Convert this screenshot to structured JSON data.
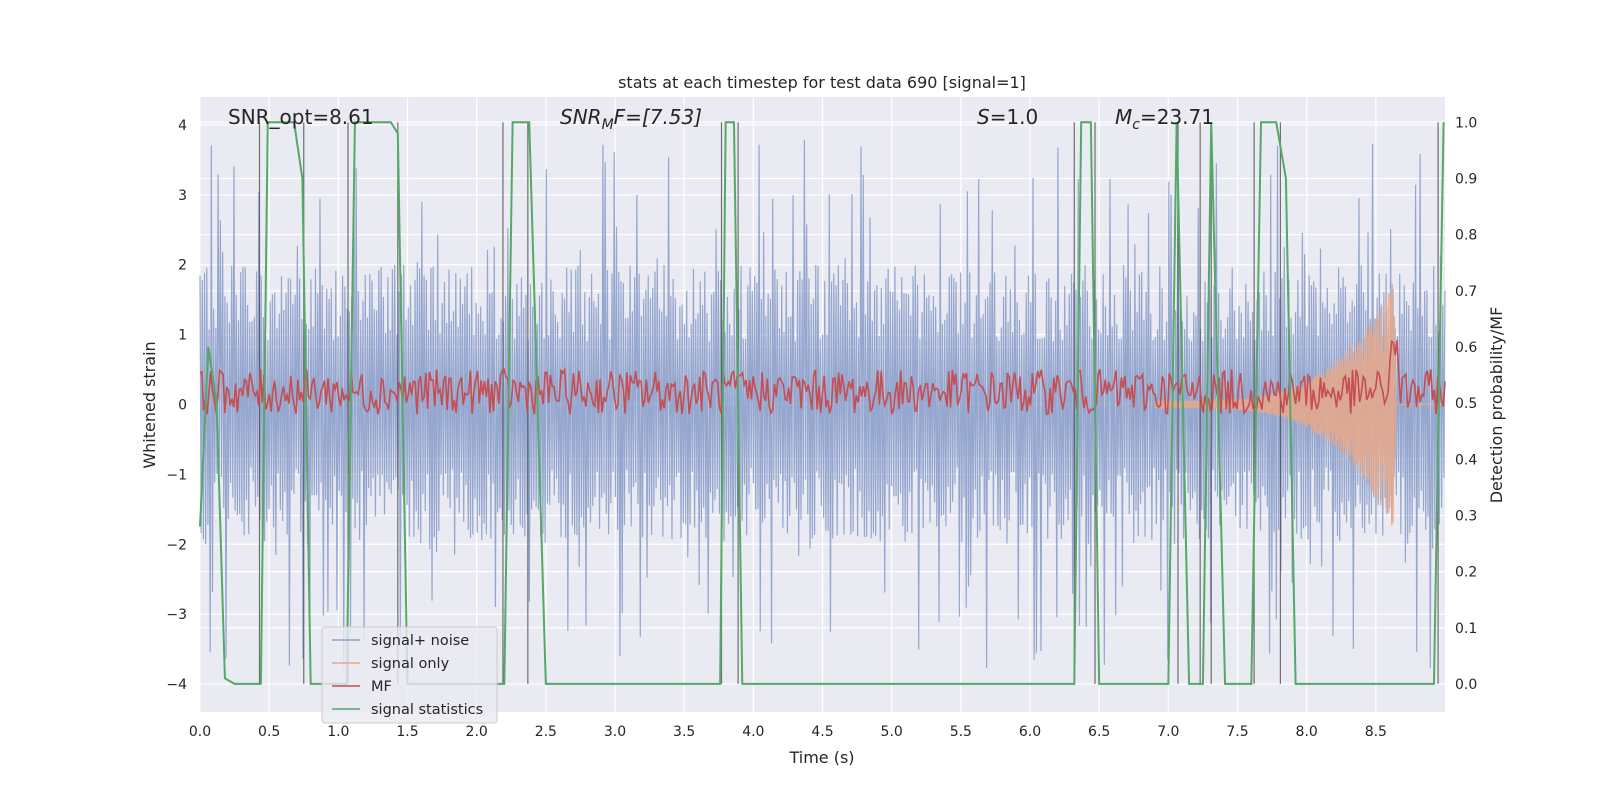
{
  "chart_data": {
    "type": "line",
    "title": "stats at each timestep for test data 690 [signal=1]",
    "xlabel": "Time (s)",
    "ylabel_left": "Whitened strain",
    "ylabel_right": "Detection probability/MF",
    "xlim": [
      0,
      9
    ],
    "ylim_left": [
      -4.4,
      4.4
    ],
    "ylim_right": [
      -0.05,
      1.045
    ],
    "xticks": [
      "0.0",
      "0.5",
      "1.0",
      "1.5",
      "2.0",
      "2.5",
      "3.0",
      "3.5",
      "4.0",
      "4.5",
      "5.0",
      "5.5",
      "6.0",
      "6.5",
      "7.0",
      "7.5",
      "8.0",
      "8.5"
    ],
    "yticks_left": [
      "−4",
      "−3",
      "−2",
      "−1",
      "0",
      "1",
      "2",
      "3",
      "4"
    ],
    "yticks_right": [
      "0.0",
      "0.1",
      "0.2",
      "0.3",
      "0.4",
      "0.5",
      "0.6",
      "0.7",
      "0.8",
      "0.9",
      "1.0"
    ],
    "grid": true,
    "legend_position": "lower-left",
    "annotations": {
      "snr_opt": "SNR_opt=8.61",
      "snr_mf_sym": "SNR",
      "snr_mf_sub": "M",
      "snr_mf_rest": "F=[7.53]",
      "s_sym": "S",
      "s_rest": "=1.0",
      "mc_sym": "M",
      "mc_sub": "c",
      "mc_rest": "=23.71"
    },
    "series": [
      {
        "name": "signal+ noise",
        "color": "#8da0cb",
        "axis": "left",
        "description_range": [
          -3.8,
          3.8
        ],
        "envelope": {
          "typical_abs_max": 2.0,
          "spike_abs_max": 3.8,
          "samples": 1100
        }
      },
      {
        "name": "signal only",
        "color": "#e8a88a",
        "axis": "left",
        "chirp": {
          "start": 6.9,
          "peak_time": 8.63,
          "peak_amp": 1.8,
          "end": 9.0
        }
      },
      {
        "name": "MF",
        "color": "#c44e52",
        "axis": "right",
        "baseline": 0.52,
        "noise_amp": 0.04,
        "peak": {
          "time": 8.63,
          "value": 0.63
        }
      },
      {
        "name": "signal statistics",
        "color": "#55a868",
        "axis": "right",
        "points": [
          [
            0.0,
            0.28
          ],
          [
            0.06,
            0.6
          ],
          [
            0.12,
            0.5
          ],
          [
            0.18,
            0.01
          ],
          [
            0.25,
            0.0
          ],
          [
            0.44,
            0.0
          ],
          [
            0.49,
            1.0
          ],
          [
            0.68,
            1.0
          ],
          [
            0.74,
            0.9
          ],
          [
            0.8,
            0.0
          ],
          [
            1.06,
            0.0
          ],
          [
            1.12,
            1.0
          ],
          [
            1.38,
            1.0
          ],
          [
            1.43,
            0.98
          ],
          [
            1.5,
            0.0
          ],
          [
            2.2,
            0.0
          ],
          [
            2.26,
            1.0
          ],
          [
            2.38,
            1.0
          ],
          [
            2.5,
            0.0
          ],
          [
            3.76,
            0.0
          ],
          [
            3.8,
            1.0
          ],
          [
            3.86,
            1.0
          ],
          [
            3.92,
            0.0
          ],
          [
            6.32,
            0.0
          ],
          [
            6.37,
            1.0
          ],
          [
            6.44,
            1.0
          ],
          [
            6.5,
            0.0
          ],
          [
            7.0,
            0.0
          ],
          [
            7.06,
            1.0
          ],
          [
            7.15,
            0.0
          ],
          [
            7.25,
            0.0
          ],
          [
            7.31,
            1.0
          ],
          [
            7.41,
            0.0
          ],
          [
            7.6,
            0.0
          ],
          [
            7.67,
            1.0
          ],
          [
            7.78,
            1.0
          ],
          [
            7.85,
            0.9
          ],
          [
            7.92,
            0.0
          ],
          [
            8.92,
            0.0
          ],
          [
            8.99,
            1.0
          ]
        ]
      }
    ],
    "vertical_lines": [
      0.43,
      0.75,
      1.07,
      1.43,
      2.19,
      2.37,
      3.77,
      3.89,
      6.32,
      6.47,
      7.07,
      7.23,
      7.31,
      7.62,
      7.81,
      8.95
    ]
  }
}
